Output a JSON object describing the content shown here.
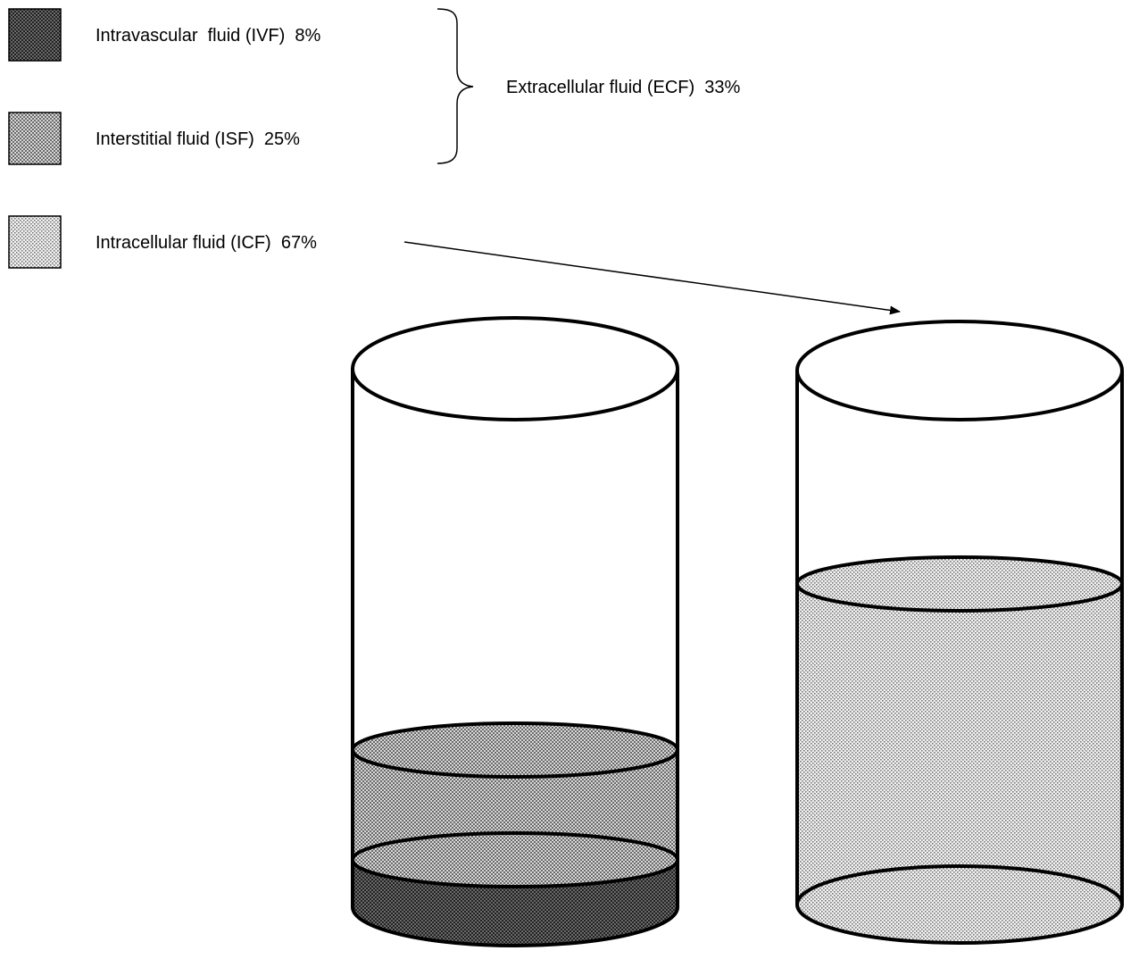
{
  "legend": {
    "items": [
      {
        "key": "ivf",
        "label": "Intravascular  fluid (IVF)  8%",
        "percent": 8
      },
      {
        "key": "isf",
        "label": "Interstitial fluid (ISF)  25%",
        "percent": 25
      },
      {
        "key": "icf",
        "label": "Intracellular fluid (ICF)  67%",
        "percent": 67
      }
    ],
    "group_label": "Extracellular fluid (ECF)  33%"
  },
  "cylinders": [
    {
      "name": "ecf-cylinder",
      "layers": [
        "ivf",
        "isf"
      ]
    },
    {
      "name": "icf-cylinder",
      "layers": [
        "icf"
      ]
    }
  ],
  "colors": {
    "stroke": "#000000",
    "background": "#ffffff",
    "ivf_fill": "#555555",
    "isf_fill": "#a8a8a8",
    "icf_fill": "#d4d4d4"
  }
}
